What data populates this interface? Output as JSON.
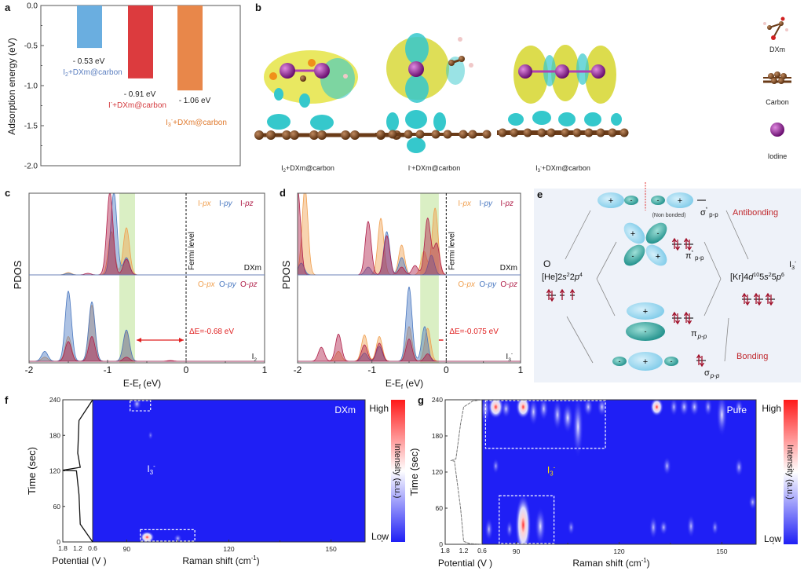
{
  "panels": {
    "a": "a",
    "b": "b",
    "c": "c",
    "d": "d",
    "e": "e",
    "f": "f",
    "g": "g"
  },
  "panel_b": {
    "captions": [
      {
        "base": "I",
        "sub": "2",
        "sup": "",
        "rest": "+DXm@carbon"
      },
      {
        "base": "I",
        "sub": "",
        "sup": "-",
        "rest": "+DXm@carbon"
      },
      {
        "base": "I",
        "sub": "3",
        "sup": "-",
        "rest": "+DXm@carbon"
      }
    ],
    "legend": [
      "DXm",
      "Carbon",
      "Iodine"
    ],
    "colors": {
      "iodine": "#8a1f8c",
      "carbon": "#7a4a25",
      "isosurface_positive": "#e4e23a",
      "isosurface_negative": "#35c8cc"
    }
  },
  "panel_e": {
    "left_atom": "O",
    "left_config": {
      "a": "[He]2",
      "s": "s",
      "b": "2",
      "c": "2",
      "p": "p",
      "d": "4"
    },
    "right_atom": {
      "base": "I",
      "sub": "3",
      "sup": "-"
    },
    "right_config": {
      "a": "[Kr]4",
      "d1": "d",
      "e": "10",
      "f": "5",
      "s": "s",
      "g": "2",
      "h": "5",
      "p": "p",
      "i": "6"
    },
    "non_bonded": "(Non bonded)",
    "antibonding": "Antibonding",
    "bonding": "Bonding",
    "sigma_star": {
      "sym": "σ",
      "sup": "*",
      "sub": "p-p"
    },
    "pi_star": {
      "sym": "π",
      "sup": "*",
      "sub": "p-p"
    },
    "pi": {
      "sym": "π",
      "sub": "p-p"
    },
    "sigma": {
      "sym": "σ",
      "sub": "p-p"
    },
    "plus": "+",
    "minus": "-",
    "colors": {
      "background": "#eef2f9",
      "lobe_light": "#8fd3ee",
      "lobe_dark": "#1e8f8a",
      "accent": "#c0282d"
    }
  },
  "chart_data": [
    {
      "panel": "a",
      "type": "bar",
      "ylabel": "Adsorption energy (eV)",
      "ylim": [
        -2.0,
        0.0
      ],
      "yticks": [
        "0.0",
        "-0.5",
        "-1.0",
        "-1.5",
        "-2.0"
      ],
      "categories": [
        {
          "base": "I",
          "sub": "2",
          "sup": "",
          "rest": "+DXm@carbon"
        },
        {
          "base": "I",
          "sub": "",
          "sup": "-",
          "rest": "+DXm@carbon"
        },
        {
          "base": "I",
          "sub": "3",
          "sup": "-",
          "rest": "+DXm@carbon"
        }
      ],
      "values": [
        -0.53,
        -0.91,
        -1.06
      ],
      "value_labels": [
        "- 0.53 eV",
        "- 0.91 eV",
        "- 1.06 eV"
      ],
      "colors": [
        "#6aaee0",
        "#dc3b3e",
        "#e8874a"
      ],
      "label_colors": [
        "#5b7fc0",
        "#d43a3e",
        "#e07b2f"
      ]
    },
    {
      "panel": "c",
      "type": "area",
      "xlabel": {
        "a": "E-E",
        "sub": "f",
        "b": " (eV)"
      },
      "ylabel": "PDOS",
      "xlim": [
        -2,
        1
      ],
      "xticks": [
        "-2",
        "-1",
        "0",
        "1"
      ],
      "fermi_label": "Fermi level",
      "fermi_energy": 0,
      "highlight_range": [
        -0.85,
        -0.65
      ],
      "annotation": "ΔE=-0.68 eV",
      "top": {
        "system": "DXm",
        "series": [
          {
            "prefix": "I-",
            "orb": "px",
            "color": "#f0a050",
            "peaks": [
              [
                -1.5,
                0.03
              ],
              [
                -0.95,
                0.55
              ],
              [
                -0.76,
                0.6
              ]
            ]
          },
          {
            "prefix": "I-",
            "orb": "py",
            "color": "#4a78c0",
            "peaks": [
              [
                -1.5,
                0.02
              ],
              [
                -0.92,
                1.05
              ],
              [
                -0.76,
                0.22
              ]
            ]
          },
          {
            "prefix": "I-",
            "orb": "pz",
            "color": "#b0204a",
            "peaks": [
              [
                -1.25,
                0.02
              ],
              [
                -0.97,
                1.05
              ],
              [
                -0.76,
                0.2
              ]
            ]
          }
        ]
      },
      "bottom": {
        "system": {
          "base": "I",
          "sub": "2",
          "sup": ""
        },
        "series": [
          {
            "prefix": "O-",
            "orb": "px",
            "color": "#f0a050",
            "peaks": [
              [
                -1.8,
                0.05
              ],
              [
                -1.5,
                0.3
              ],
              [
                -1.2,
                0.68
              ],
              [
                -0.76,
                0.36
              ]
            ]
          },
          {
            "prefix": "O-",
            "orb": "py",
            "color": "#4a78c0",
            "peaks": [
              [
                -1.8,
                0.12
              ],
              [
                -1.5,
                0.85
              ],
              [
                -1.2,
                0.72
              ],
              [
                -0.76,
                0.38
              ]
            ]
          },
          {
            "prefix": "O-",
            "orb": "pz",
            "color": "#b0204a",
            "peaks": [
              [
                -1.5,
                0.24
              ],
              [
                -1.2,
                0.3
              ],
              [
                -0.76,
                0.05
              ],
              [
                -0.2,
                0.01
              ]
            ]
          }
        ]
      }
    },
    {
      "panel": "d",
      "type": "area",
      "xlabel": {
        "a": "E-E",
        "sub": "f",
        "b": " (eV)"
      },
      "ylabel": "PDOS",
      "xlim": [
        -2,
        1
      ],
      "xticks": [
        "-2",
        "-1",
        "0",
        "1"
      ],
      "fermi_label": "Fermi level",
      "fermi_energy": 0,
      "highlight_range": [
        -0.35,
        -0.1
      ],
      "annotation": "ΔE=-0.075 eV",
      "top": {
        "system": "DXm",
        "series": [
          {
            "prefix": "I-",
            "orb": "px",
            "color": "#f0a050",
            "peaks": [
              [
                -1.9,
                1.1
              ],
              [
                -0.88,
                0.72
              ],
              [
                -0.6,
                0.38
              ],
              [
                -0.15,
                0.85
              ],
              [
                -0.3,
                0.3
              ]
            ]
          },
          {
            "prefix": "I-",
            "orb": "py",
            "color": "#4a78c0",
            "peaks": [
              [
                -1.95,
                0.15
              ],
              [
                -1.05,
                0.1
              ],
              [
                -0.8,
                0.55
              ],
              [
                -0.6,
                0.22
              ],
              [
                -0.2,
                0.25
              ]
            ]
          },
          {
            "prefix": "I-",
            "orb": "pz",
            "color": "#b0204a",
            "peaks": [
              [
                -2.0,
                1.1
              ],
              [
                -1.05,
                0.68
              ],
              [
                -0.8,
                0.5
              ],
              [
                -0.6,
                0.1
              ],
              [
                -0.42,
                0.12
              ],
              [
                -0.25,
                0.72
              ],
              [
                -0.13,
                0.4
              ]
            ]
          }
        ]
      },
      "bottom": {
        "system": {
          "base": "I",
          "sub": "3",
          "sup": "-"
        },
        "series": [
          {
            "prefix": "O-",
            "orb": "px",
            "color": "#f0a050",
            "peaks": [
              [
                -1.45,
                0.12
              ],
              [
                -1.1,
                0.32
              ],
              [
                -0.9,
                0.3
              ],
              [
                -0.5,
                0.42
              ],
              [
                -0.25,
                0.4
              ]
            ]
          },
          {
            "prefix": "O-",
            "orb": "py",
            "color": "#4a78c0",
            "peaks": [
              [
                -1.1,
                0.1
              ],
              [
                -0.9,
                0.18
              ],
              [
                -0.5,
                0.9
              ],
              [
                -0.29,
                0.42
              ]
            ]
          },
          {
            "prefix": "O-",
            "orb": "pz",
            "color": "#b0204a",
            "peaks": [
              [
                -1.68,
                0.17
              ],
              [
                -1.45,
                0.33
              ],
              [
                -1.1,
                0.2
              ],
              [
                -0.9,
                0.22
              ],
              [
                -0.5,
                0.27
              ],
              [
                -0.25,
                0.09
              ]
            ]
          }
        ]
      }
    },
    {
      "panel": "f",
      "type": "heatmap",
      "label": "DXm",
      "xlabel": {
        "a": "Raman shift (cm",
        "sup": "-1",
        "b": ")"
      },
      "ylabel": "Time  (sec)",
      "potential_label": "Potential (V )",
      "xlim": [
        80,
        160
      ],
      "xticks": [
        "90",
        "120",
        "150"
      ],
      "ylim": [
        0,
        240
      ],
      "yticks": [
        "0",
        "60",
        "120",
        "180",
        "240"
      ],
      "potential_ticks": [
        "1.8",
        "1.2",
        "0.6"
      ],
      "potential_lim": [
        1.8,
        0.6
      ],
      "peak_label": {
        "base": "I",
        "sub": "3",
        "sup": "-"
      },
      "colorbar": {
        "title": "Intensity (a.u.)",
        "high": "High",
        "low": "Low",
        "colors": [
          "#ff1a1a",
          "#ffffff",
          "#1f1ff5"
        ]
      },
      "background": "#1f1ff5",
      "potential_curve": [
        [
          0.6,
          0
        ],
        [
          1.1,
          30
        ],
        [
          1.15,
          80
        ],
        [
          1.25,
          120
        ],
        [
          1.8,
          121
        ],
        [
          1.1,
          126
        ],
        [
          1.2,
          150
        ],
        [
          1.15,
          205
        ],
        [
          0.6,
          240
        ]
      ],
      "regions": [
        [
          91,
          97,
          220,
          240
        ],
        [
          94,
          110,
          0,
          22
        ]
      ],
      "spots": [
        [
          93,
          233,
          0.35,
          8
        ],
        [
          96,
          8,
          0.8,
          8
        ],
        [
          105,
          6,
          0.3,
          5
        ],
        [
          97,
          180,
          0.05,
          4
        ]
      ]
    },
    {
      "panel": "g",
      "type": "heatmap",
      "label": "Pure",
      "xlabel": {
        "a": "Raman shift (cm",
        "sup": "-1",
        "b": ")"
      },
      "ylabel": "Time  (sec)",
      "potential_label": "Potential (V )",
      "xlim": [
        80,
        160
      ],
      "xticks": [
        "90",
        "120",
        "150"
      ],
      "ylim": [
        0,
        240
      ],
      "yticks": [
        "0",
        "60",
        "120",
        "180",
        "240"
      ],
      "potential_ticks": [
        "1.8",
        "1.2",
        "0.6"
      ],
      "potential_lim": [
        1.8,
        0.6
      ],
      "peak_label": {
        "base": "I",
        "sub": "3",
        "sup": "-"
      },
      "colorbar": {
        "title": "Intensity (a.u.)",
        "high": "High",
        "low": "Low",
        "colors": [
          "#ff1a1a",
          "#ffffff",
          "#1f1ff5"
        ]
      },
      "background": "#1f1ff5",
      "potential_curve": [
        [
          0.6,
          0
        ],
        [
          1.0,
          1
        ],
        [
          1.2,
          5
        ],
        [
          1.3,
          60
        ],
        [
          1.5,
          138
        ],
        [
          1.6,
          139
        ],
        [
          1.45,
          142
        ],
        [
          1.3,
          200
        ],
        [
          1.2,
          228
        ],
        [
          0.9,
          238
        ],
        [
          0.6,
          240
        ]
      ],
      "regions": [
        [
          81,
          116,
          158,
          240
        ],
        [
          85,
          101,
          0,
          82
        ]
      ],
      "spots": [
        [
          81,
          225,
          0.4,
          20
        ],
        [
          84,
          228,
          0.9,
          15
        ],
        [
          87,
          225,
          0.4,
          12
        ],
        [
          92,
          228,
          0.8,
          15
        ],
        [
          95,
          220,
          0.4,
          18
        ],
        [
          98,
          225,
          0.4,
          15
        ],
        [
          102,
          215,
          0.4,
          20
        ],
        [
          105,
          210,
          0.5,
          20
        ],
        [
          108,
          195,
          0.5,
          40
        ],
        [
          111,
          228,
          0.4,
          12
        ],
        [
          115,
          228,
          0.4,
          12
        ],
        [
          131,
          228,
          0.7,
          12
        ],
        [
          136,
          228,
          0.3,
          12
        ],
        [
          139,
          228,
          0.4,
          12
        ],
        [
          142,
          228,
          0.4,
          12
        ],
        [
          146,
          228,
          0.3,
          12
        ],
        [
          150,
          215,
          0.5,
          28
        ],
        [
          155,
          228,
          0.3,
          10
        ],
        [
          84,
          130,
          0.2,
          10
        ],
        [
          134,
          130,
          0.3,
          12
        ],
        [
          155,
          128,
          0.3,
          12
        ],
        [
          92,
          32,
          0.9,
          40
        ],
        [
          97,
          30,
          0.5,
          25
        ],
        [
          82,
          25,
          0.3,
          15
        ],
        [
          88,
          25,
          0.2,
          12
        ],
        [
          106,
          28,
          0.2,
          10
        ],
        [
          130,
          28,
          0.3,
          15
        ],
        [
          133,
          28,
          0.3,
          10
        ],
        [
          141,
          30,
          0.3,
          15
        ],
        [
          148,
          28,
          0.2,
          10
        ],
        [
          159,
          70,
          0.3,
          10
        ]
      ]
    }
  ]
}
